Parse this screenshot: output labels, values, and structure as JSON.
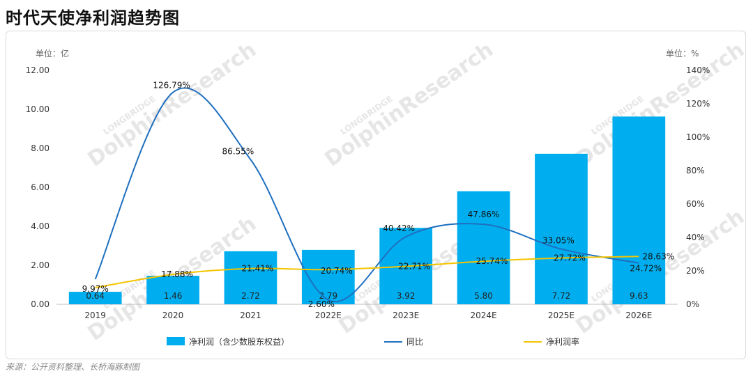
{
  "page": {
    "title": "时代天使净利润趋势图",
    "source": "来源：公开资料整理、长桥海豚制图"
  },
  "watermark": {
    "brand_small": "LONGBRIDGE",
    "brand_large": "DolphinResearch"
  },
  "colors": {
    "bar": "#00AEEF",
    "yoy_line": "#1F6FBF",
    "margin_line": "#F5C400"
  },
  "chart_data": {
    "type": "bar",
    "title": "时代天使净利润趋势图",
    "categories": [
      "2019",
      "2020",
      "2021",
      "2022E",
      "2023E",
      "2024E",
      "2025E",
      "2026E"
    ],
    "left_unit": "单位：亿",
    "right_unit": "单位：%",
    "ylim": [
      0,
      12
    ],
    "y_ticks": [
      "0.00",
      "2.00",
      "4.00",
      "6.00",
      "8.00",
      "10.00",
      "12.00"
    ],
    "y2lim": [
      0,
      140
    ],
    "y2_ticks": [
      "0%",
      "20%",
      "40%",
      "60%",
      "80%",
      "100%",
      "120%",
      "140%"
    ],
    "grid": false,
    "legend_position": "bottom",
    "series": [
      {
        "name": "净利润（含少数股东权益）",
        "type": "bar",
        "axis": "left",
        "values": [
          0.64,
          1.46,
          2.72,
          2.79,
          3.92,
          5.8,
          7.72,
          9.63
        ],
        "labels": [
          "0.64",
          "1.46",
          "2.72",
          "2.79",
          "3.92",
          "5.80",
          "7.72",
          "9.63"
        ]
      },
      {
        "name": "同比",
        "type": "line",
        "smooth": true,
        "axis": "right",
        "values": [
          null,
          126.79,
          86.55,
          2.6,
          40.42,
          47.86,
          33.05,
          24.72
        ],
        "labels": [
          "",
          "126.79%",
          "86.55%",
          "2.60%",
          "40.42%",
          "47.86%",
          "33.05%",
          "24.72%"
        ]
      },
      {
        "name": "净利润率",
        "type": "line",
        "smooth": true,
        "axis": "right",
        "values": [
          9.97,
          17.88,
          21.41,
          20.74,
          22.71,
          25.74,
          27.72,
          28.63
        ],
        "labels": [
          "9.97%",
          "17.88%",
          "21.41%",
          "20.74%",
          "22.71%",
          "25.74%",
          "27.72%",
          "28.63%"
        ]
      }
    ]
  }
}
